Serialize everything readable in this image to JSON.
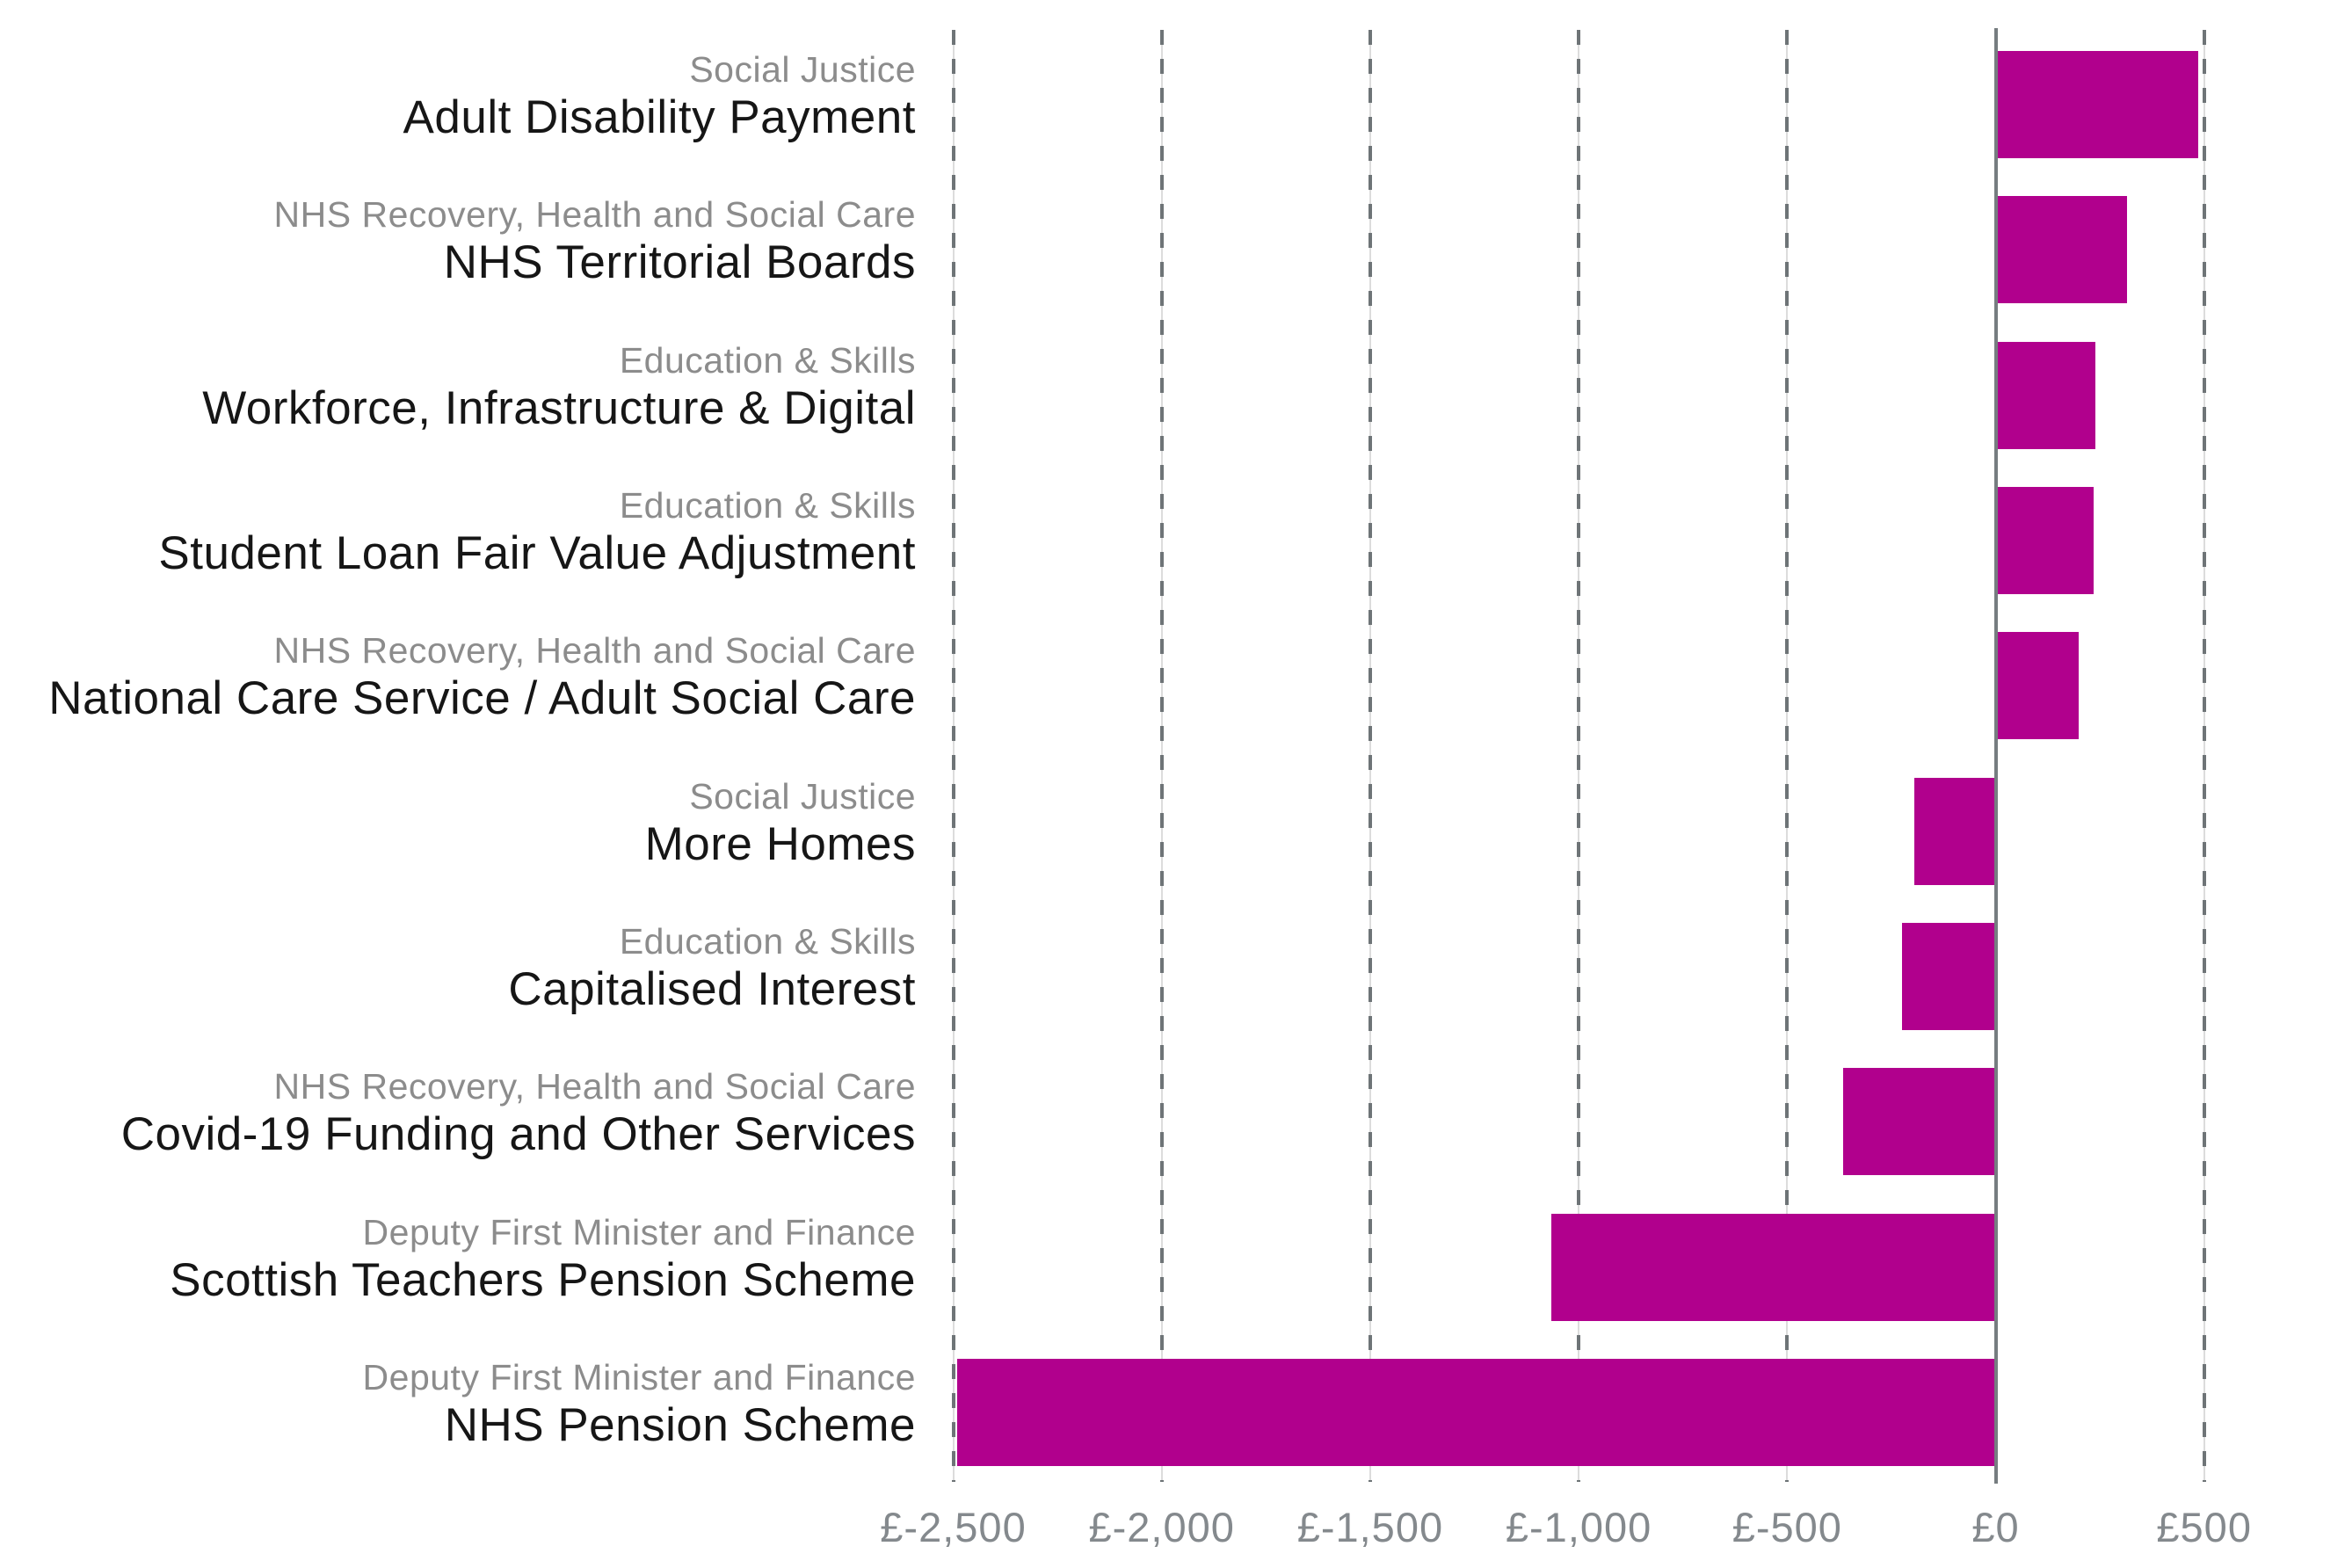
{
  "chart_data": {
    "type": "bar",
    "orientation": "horizontal",
    "title": "",
    "legend": "none",
    "grid": "vertical-dashed",
    "xlim": [
      -2520,
      540
    ],
    "x_ticks": [
      {
        "value": -2500,
        "label": "£-2,500"
      },
      {
        "value": -2000,
        "label": "£-2,000"
      },
      {
        "value": -1500,
        "label": "£-1,500"
      },
      {
        "value": -1000,
        "label": "£-1,000"
      },
      {
        "value": -500,
        "label": "£-500"
      },
      {
        "value": 0,
        "label": "£0"
      },
      {
        "value": 500,
        "label": "£500"
      }
    ],
    "items": [
      {
        "group": "Social Justice",
        "label": "Adult Disability Payment",
        "value": 485
      },
      {
        "group": "NHS Recovery, Health and Social Care",
        "label": "NHS Territorial Boards",
        "value": 315
      },
      {
        "group": "Education & Skills",
        "label": "Workforce, Infrastructure & Digital",
        "value": 240
      },
      {
        "group": "Education & Skills",
        "label": "Student Loan Fair Value Adjustment",
        "value": 235
      },
      {
        "group": "NHS Recovery, Health and Social Care",
        "label": "National Care Service / Adult Social Care",
        "value": 200
      },
      {
        "group": "Social Justice",
        "label": "More Homes",
        "value": -195
      },
      {
        "group": "Education & Skills",
        "label": "Capitalised Interest",
        "value": -225
      },
      {
        "group": "NHS Recovery, Health and Social Care",
        "label": "Covid-19 Funding and Other Services",
        "value": -365
      },
      {
        "group": "Deputy First Minister and Finance",
        "label": "Scottish Teachers Pension Scheme",
        "value": -1065
      },
      {
        "group": "Deputy First Minister and Finance",
        "label": "NHS Pension Scheme",
        "value": -2490
      }
    ],
    "colors": {
      "bar": "#B1008D",
      "grid_dash": "#6E7477",
      "grid_pale": "#DCDCDC",
      "zero_line": "#767D80",
      "group_text": "#8C8C8C",
      "name_text": "#161616",
      "axis_text": "#84898D",
      "background": "#FFFFFF"
    }
  }
}
